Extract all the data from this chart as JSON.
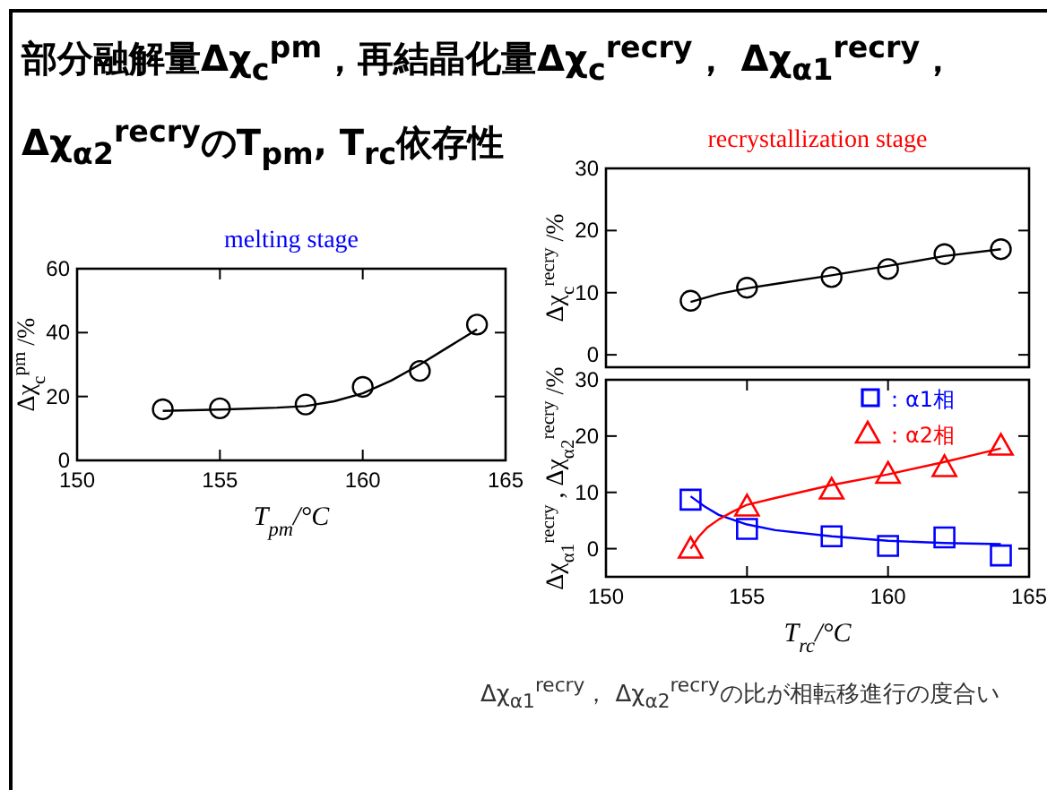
{
  "chart_data": [
    {
      "type": "other",
      "title": "部分融解量Δχ$_{c}$$^{pm}$，再結晶化量Δχ$_{c}$$^{recry}$， Δχ$_{α1}$$^{recry}$，Δχ$_{α2}$$^{recry}$のT$_{pm}$, T$_{rc}$依存性",
      "annotations": [
        "Δχ$_{α1}$$^{recry}$， Δχ$_{α2}$$^{recry}$の比が相転移進行の度合い"
      ]
    },
    {
      "type": "scatter",
      "title": "melting stage",
      "xlabel": "T$_{pm}$/°C",
      "ylabel": "Δχ$_{c}$$^{pm}$ /%",
      "xlim": [
        150,
        165
      ],
      "xticks": [
        150,
        155,
        160,
        165
      ],
      "ylim": [
        0,
        60
      ],
      "yticks": [
        0,
        20,
        40,
        60
      ],
      "grid": false,
      "legend": false,
      "series": [
        {
          "type": "scatter",
          "marker": "circle",
          "color": "#000000",
          "x": [
            153,
            155,
            158,
            160,
            162,
            164
          ],
          "values": [
            16,
            16.3,
            17.5,
            23,
            28,
            42.5
          ]
        },
        {
          "type": "line",
          "marker": "none",
          "color": "#000000",
          "x": [
            153,
            155,
            157,
            158,
            159,
            160,
            161,
            162,
            163,
            164
          ],
          "values": [
            15.5,
            15.9,
            16.5,
            17,
            18.5,
            21,
            25,
            30,
            35.5,
            41
          ]
        }
      ]
    },
    {
      "type": "scatter",
      "title": "recrystallization stage",
      "ylabel": "Δχ$_{c}$$^{recry}$ /%",
      "xlim": [
        150,
        165
      ],
      "ylim": [
        -2,
        30
      ],
      "yticks": [
        0,
        10,
        20,
        30
      ],
      "tick_labels": "y",
      "grid": false,
      "legend": false,
      "series": [
        {
          "type": "scatter",
          "marker": "circle",
          "color": "#000000",
          "x": [
            153,
            155,
            158,
            160,
            162,
            164
          ],
          "values": [
            8.7,
            10.8,
            12.5,
            13.8,
            16.2,
            17
          ]
        },
        {
          "type": "line",
          "marker": "none",
          "color": "#000000",
          "x": [
            153,
            154,
            155,
            156,
            158,
            160,
            162,
            164
          ],
          "values": [
            8.5,
            9.8,
            10.7,
            11.4,
            12.8,
            14.3,
            15.9,
            17
          ]
        }
      ]
    },
    {
      "type": "scatter",
      "xlabel": "T$_{rc}$/°C",
      "ylabel": "Δχ$_{α1}$$^{recry}$ , Δχ$_{α2}$$^{recry}$ /%",
      "xlim": [
        150,
        165
      ],
      "xticks": [
        150,
        155,
        160,
        165
      ],
      "ylim": [
        -5,
        30
      ],
      "yticks": [
        0,
        10,
        20,
        30
      ],
      "grid": false,
      "legend": "top right",
      "series": [
        {
          "type": "scatter",
          "name": "：α1相",
          "marker": "square",
          "color": "#0000ff",
          "x": [
            153,
            155,
            158,
            160,
            162,
            164
          ],
          "values": [
            8.7,
            3.5,
            2.2,
            0.5,
            2,
            -1.2
          ]
        },
        {
          "type": "scatter",
          "name": "：α2相",
          "marker": "triangle",
          "color": "#ff0000",
          "x": [
            153,
            155,
            158,
            160,
            162,
            164
          ],
          "values": [
            0,
            7.5,
            10.5,
            13.3,
            14.5,
            18.3
          ]
        },
        {
          "type": "line",
          "marker": "none",
          "color": "#0000ff",
          "x": [
            153,
            153.5,
            154,
            155,
            156,
            158,
            160,
            162,
            164
          ],
          "values": [
            9.3,
            7.5,
            6,
            4.3,
            3.3,
            2.2,
            1.4,
            1,
            0.8
          ]
        },
        {
          "type": "line",
          "marker": "none",
          "color": "#ff0000",
          "x": [
            153,
            153.3,
            153.6,
            154,
            154.5,
            155,
            156,
            158,
            160,
            162,
            164
          ],
          "values": [
            0,
            2.2,
            3.8,
            5.2,
            6.6,
            7.8,
            9,
            11.3,
            13.2,
            15.4,
            17.8
          ]
        }
      ]
    }
  ]
}
